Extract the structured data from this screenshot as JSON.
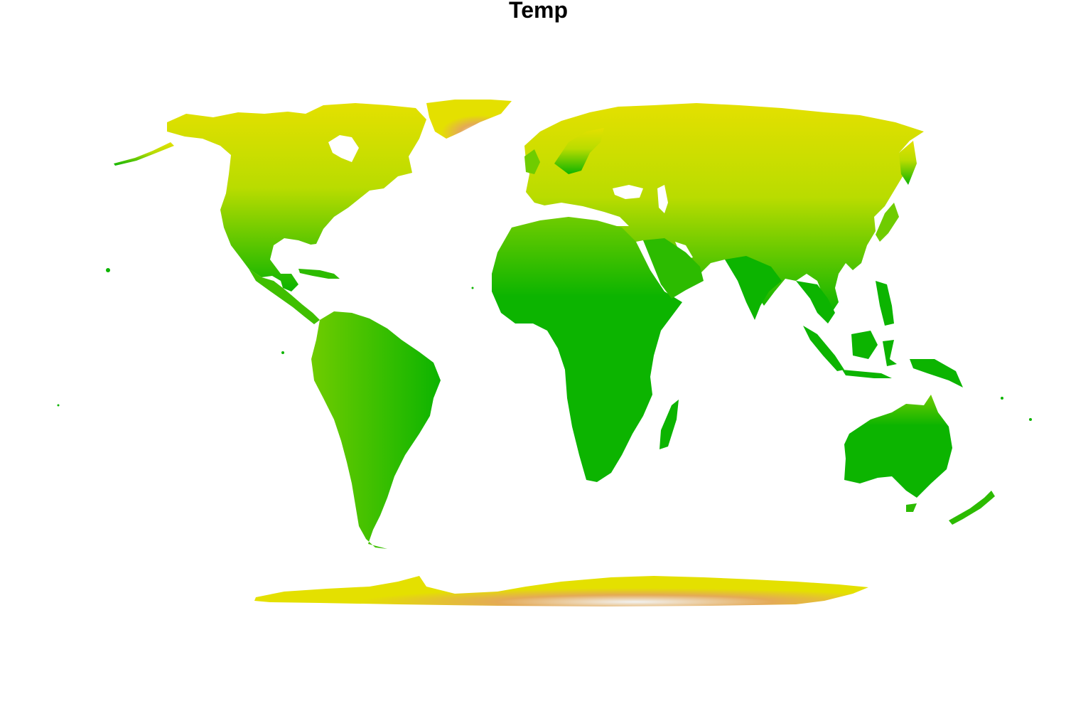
{
  "map": {
    "title": "Temp",
    "palette": {
      "warm_lowland": "#0cb400",
      "mild": "#6fcc00",
      "cool": "#b9dc00",
      "cold": "#e4e000",
      "very_cold": "#e4aa56",
      "coldest": "#f2f2f2"
    }
  }
}
